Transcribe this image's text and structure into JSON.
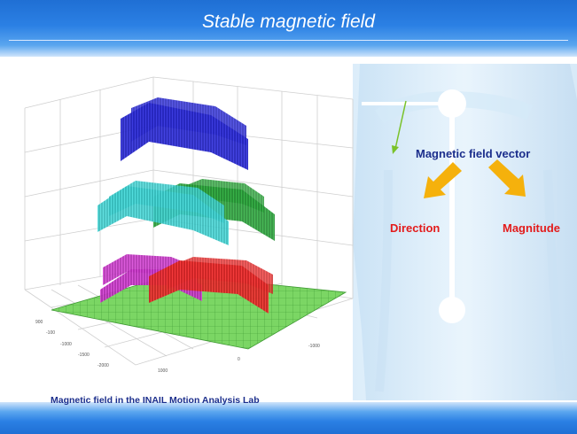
{
  "slide": {
    "title": "Stable magnetic field",
    "caption": "Magnetic field in the INAIL Motion Analysis Lab"
  },
  "diagram": {
    "vector_label": "Magnetic field vector",
    "direction_label": "Direction",
    "magnitude_label": "Magnitude"
  },
  "plot": {
    "tick_labels_left": [
      "900",
      "-100",
      "-1000",
      "-1500",
      "-2000"
    ],
    "tick_labels_bottom": [
      "1000",
      "0",
      "-1000"
    ]
  },
  "colors": {
    "title_bar": "#2b80e4",
    "caption_text": "#1b2e8c",
    "label_red": "#e31b1b",
    "arrow_orange": "#f5b10c",
    "layer_blue": "#1b1bd0",
    "layer_cyan": "#22c7c7",
    "layer_green": "#1f9a2e",
    "layer_red": "#ee1c1c",
    "layer_magenta": "#c21ec2",
    "floor_green": "#6fd05a"
  }
}
